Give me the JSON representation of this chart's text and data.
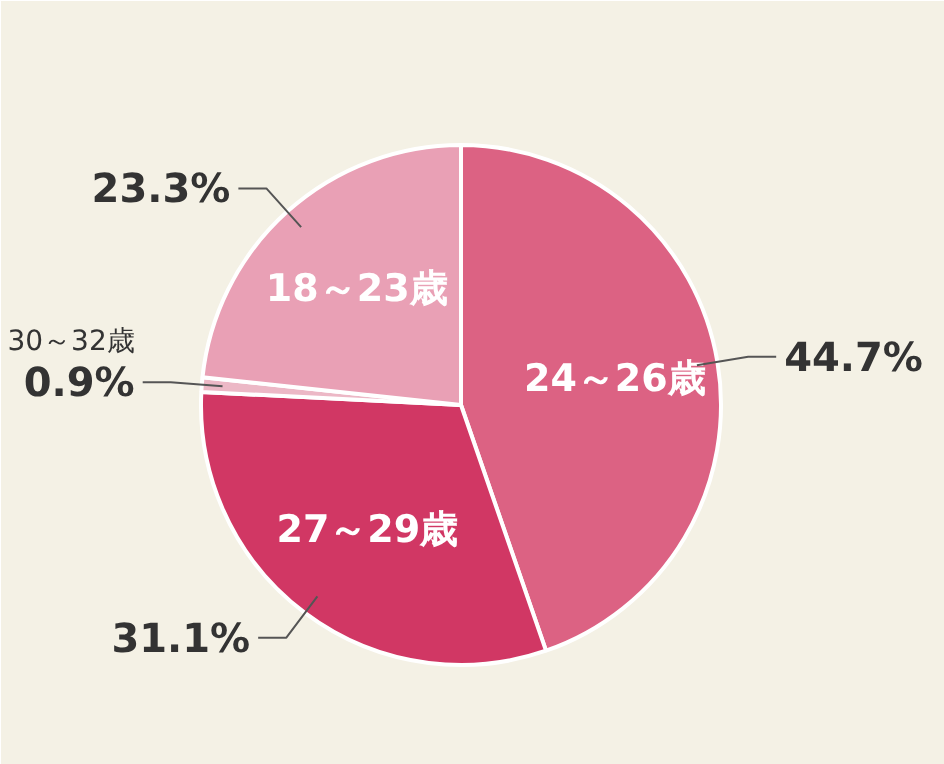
{
  "chart_data": {
    "type": "pie",
    "categories": [
      "24～26歳",
      "27～29歳",
      "30～32歳",
      "18～23歳"
    ],
    "values": [
      44.7,
      31.1,
      0.9,
      23.3
    ],
    "colors": [
      "#dc6283",
      "#d13764",
      "#ecb8c6",
      "#e9a0b5"
    ],
    "value_labels": [
      "44.7%",
      "31.1%",
      "0.9%",
      "23.3%"
    ]
  }
}
